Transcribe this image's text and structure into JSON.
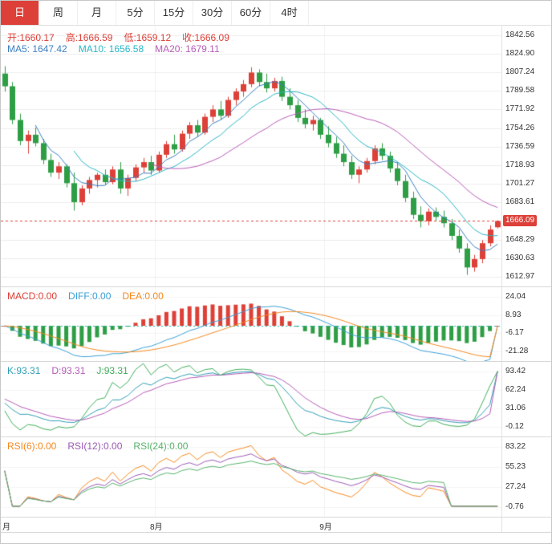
{
  "toolbar": {
    "tabs": [
      {
        "id": "day",
        "label": "日",
        "selected": true
      },
      {
        "id": "week",
        "label": "周",
        "selected": false
      },
      {
        "id": "month",
        "label": "月",
        "selected": false
      },
      {
        "id": "5min",
        "label": "5分",
        "selected": false
      },
      {
        "id": "15min",
        "label": "15分",
        "selected": false
      },
      {
        "id": "30min",
        "label": "30分",
        "selected": false
      },
      {
        "id": "60min",
        "label": "60分",
        "selected": false
      },
      {
        "id": "4hour",
        "label": "4时",
        "selected": false
      }
    ]
  },
  "colors": {
    "red": "#dd4038",
    "green": "#2e9e45",
    "ma5": "#3b7fc2",
    "ma10": "#29b6c5",
    "ma20": "#b75bb7",
    "diff": "#3aa0d8",
    "dea": "#f5891f",
    "k": "#2f9fb4",
    "d": "#b75bb7",
    "j": "#3fae5a",
    "rsi6": "#f5891f",
    "rsi12": "#9b59b6",
    "rsi24": "#57b26b",
    "grid": "#ececec",
    "subgrid": "#f5f5f5",
    "vgrid": "#f0f0f0",
    "zero": "#2ab5b5"
  },
  "panels": {
    "price": {
      "ohlc": [
        {
          "text": "开:1660.17",
          "color": "#dd4038",
          "name": "open-readout"
        },
        {
          "text": "高:1666.59",
          "color": "#dd4038",
          "name": "high-readout"
        },
        {
          "text": "低:1659.12",
          "color": "#dd4038",
          "name": "low-readout"
        },
        {
          "text": "收:1666.09",
          "color": "#dd4038",
          "name": "close-readout"
        }
      ],
      "ma": [
        {
          "text": "MA5: 1647.42",
          "color": "#3b7fc2",
          "name": "ma5-readout"
        },
        {
          "text": "MA10: 1656.58",
          "color": "#29b6c5",
          "name": "ma10-readout"
        },
        {
          "text": "MA20: 1679.11",
          "color": "#b75bb7",
          "name": "ma20-readout"
        }
      ]
    },
    "macd": {
      "items": [
        {
          "text": "MACD:0.00",
          "color": "#dd4038",
          "name": "macd-readout"
        },
        {
          "text": "DIFF:0.00",
          "color": "#3aa0d8",
          "name": "diff-readout"
        },
        {
          "text": "DEA:0.00",
          "color": "#f5891f",
          "name": "dea-readout"
        }
      ]
    },
    "kdj": {
      "items": [
        {
          "text": "K:93.31",
          "color": "#2f9fb4",
          "name": "k-readout"
        },
        {
          "text": "D:93.31",
          "color": "#b75bb7",
          "name": "d-readout"
        },
        {
          "text": "J:93.31",
          "color": "#3fae5a",
          "name": "j-readout"
        }
      ]
    },
    "rsi": {
      "items": [
        {
          "text": "RSI(6):0.00",
          "color": "#f5891f",
          "name": "rsi6-readout"
        },
        {
          "text": "RSI(12):0.00",
          "color": "#9b59b6",
          "name": "rsi12-readout"
        },
        {
          "text": "RSI(24):0.00",
          "color": "#57b26b",
          "name": "rsi24-readout"
        }
      ]
    }
  },
  "chart_data": {
    "type": "candlestick",
    "x_axis": {
      "months": [
        {
          "label": "月",
          "index": 0
        },
        {
          "label": "8月",
          "index": 20
        },
        {
          "label": "9月",
          "index": 42
        }
      ]
    },
    "price_axis": {
      "ticks": [
        1842.56,
        1824.9,
        1807.24,
        1789.58,
        1771.92,
        1754.26,
        1736.59,
        1718.93,
        1701.27,
        1683.61,
        1648.29,
        1630.63,
        1612.97
      ],
      "min": 1604.0,
      "max": 1851.5,
      "last_price": 1666.09
    },
    "macd_axis": {
      "ticks": [
        24.04,
        8.93,
        -6.17,
        -21.28
      ],
      "min": -28.85,
      "max": 31.6
    },
    "kdj_axis": {
      "ticks": [
        93.42,
        62.24,
        31.06,
        -0.12
      ],
      "min": -15.71,
      "max": 109.01
    },
    "rsi_axis": {
      "ticks": [
        83.22,
        55.23,
        27.24,
        -0.76
      ],
      "min": -14.75,
      "max": 97.21
    },
    "readouts": {
      "open": 1660.17,
      "high": 1666.59,
      "low": 1659.12,
      "close": 1666.09,
      "ma5": 1647.42,
      "ma10": 1656.58,
      "ma20": 1679.11,
      "macd": 0.0,
      "diff": 0.0,
      "dea": 0.0,
      "k": 93.31,
      "d": 93.31,
      "j": 93.31,
      "rsi6": 0.0,
      "rsi12": 0.0,
      "rsi24": 0.0
    },
    "candles": [
      [
        1806,
        1813,
        1789,
        1794
      ],
      [
        1794,
        1798,
        1758,
        1762
      ],
      [
        1762,
        1768,
        1738,
        1742
      ],
      [
        1742,
        1752,
        1730,
        1748
      ],
      [
        1748,
        1755,
        1737,
        1740
      ],
      [
        1740,
        1744,
        1720,
        1724
      ],
      [
        1724,
        1730,
        1708,
        1712
      ],
      [
        1712,
        1722,
        1706,
        1718
      ],
      [
        1718,
        1720,
        1698,
        1702
      ],
      [
        1702,
        1712,
        1676,
        1684
      ],
      [
        1684,
        1700,
        1681,
        1697
      ],
      [
        1697,
        1708,
        1692,
        1705
      ],
      [
        1705,
        1712,
        1698,
        1710
      ],
      [
        1710,
        1715,
        1700,
        1703
      ],
      [
        1703,
        1718,
        1701,
        1715
      ],
      [
        1715,
        1722,
        1692,
        1697
      ],
      [
        1697,
        1710,
        1690,
        1707
      ],
      [
        1707,
        1720,
        1704,
        1717
      ],
      [
        1717,
        1726,
        1712,
        1722
      ],
      [
        1722,
        1728,
        1710,
        1714
      ],
      [
        1714,
        1732,
        1712,
        1729
      ],
      [
        1729,
        1742,
        1726,
        1739
      ],
      [
        1739,
        1748,
        1730,
        1734
      ],
      [
        1734,
        1752,
        1732,
        1749
      ],
      [
        1749,
        1760,
        1744,
        1757
      ],
      [
        1757,
        1762,
        1746,
        1750
      ],
      [
        1750,
        1768,
        1748,
        1765
      ],
      [
        1765,
        1776,
        1760,
        1772
      ],
      [
        1772,
        1780,
        1762,
        1766
      ],
      [
        1766,
        1784,
        1764,
        1781
      ],
      [
        1781,
        1792,
        1776,
        1789
      ],
      [
        1789,
        1800,
        1784,
        1796
      ],
      [
        1796,
        1812,
        1793,
        1807
      ],
      [
        1807,
        1810,
        1794,
        1798
      ],
      [
        1798,
        1806,
        1788,
        1792
      ],
      [
        1792,
        1802,
        1789,
        1799
      ],
      [
        1799,
        1803,
        1780,
        1784
      ],
      [
        1784,
        1792,
        1772,
        1776
      ],
      [
        1776,
        1781,
        1760,
        1764
      ],
      [
        1764,
        1772,
        1754,
        1758
      ],
      [
        1758,
        1766,
        1752,
        1762
      ],
      [
        1762,
        1764,
        1744,
        1748
      ],
      [
        1748,
        1756,
        1736,
        1740
      ],
      [
        1740,
        1746,
        1726,
        1730
      ],
      [
        1730,
        1738,
        1718,
        1722
      ],
      [
        1722,
        1728,
        1706,
        1710
      ],
      [
        1710,
        1718,
        1702,
        1715
      ],
      [
        1715,
        1726,
        1712,
        1723
      ],
      [
        1723,
        1738,
        1720,
        1735
      ],
      [
        1735,
        1740,
        1724,
        1728
      ],
      [
        1728,
        1732,
        1712,
        1716
      ],
      [
        1716,
        1722,
        1700,
        1704
      ],
      [
        1704,
        1710,
        1684,
        1688
      ],
      [
        1688,
        1694,
        1668,
        1672
      ],
      [
        1672,
        1680,
        1660,
        1666
      ],
      [
        1666,
        1678,
        1662,
        1675
      ],
      [
        1675,
        1679,
        1666,
        1670
      ],
      [
        1670,
        1676,
        1660,
        1664
      ],
      [
        1664,
        1668,
        1648,
        1652
      ],
      [
        1652,
        1658,
        1636,
        1640
      ],
      [
        1640,
        1645,
        1615,
        1622
      ],
      [
        1622,
        1634,
        1618,
        1630
      ],
      [
        1630,
        1648,
        1626,
        1645
      ],
      [
        1645,
        1662,
        1642,
        1658
      ],
      [
        1660.17,
        1666.59,
        1659.12,
        1666.09
      ]
    ],
    "overrides": {
      "kdj_last": 93.31,
      "rsi_tail_zero": 7,
      "macd_last_zero": true
    }
  }
}
